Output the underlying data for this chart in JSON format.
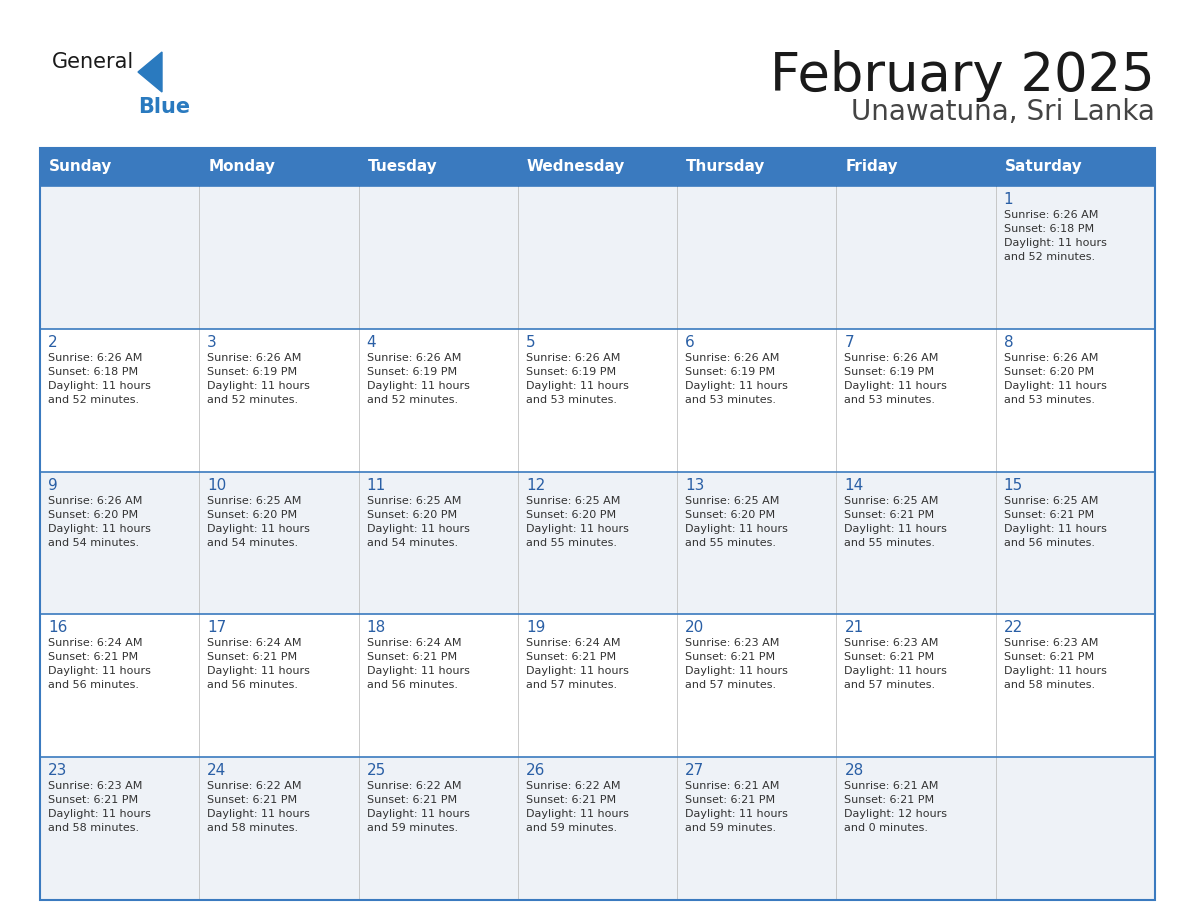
{
  "title": "February 2025",
  "subtitle": "Unawatuna, Sri Lanka",
  "header_color": "#3a7abf",
  "header_text_color": "#ffffff",
  "row_bg_even": "#eef2f7",
  "row_bg_odd": "#ffffff",
  "border_color": "#3a7abf",
  "cell_divider_color": "#c0c0c0",
  "days_of_week": [
    "Sunday",
    "Monday",
    "Tuesday",
    "Wednesday",
    "Thursday",
    "Friday",
    "Saturday"
  ],
  "title_color": "#1a1a1a",
  "subtitle_color": "#444444",
  "day_num_color": "#2a5fa5",
  "text_color": "#333333",
  "logo_general_color": "#1a1a1a",
  "logo_blue_color": "#2a7abf",
  "logo_triangle_color": "#2a7abf",
  "calendar_data": [
    [
      null,
      null,
      null,
      null,
      null,
      null,
      {
        "day": 1,
        "sunrise": "6:26 AM",
        "sunset": "6:18 PM",
        "daylight": "11 hours",
        "daylight2": "and 52 minutes."
      }
    ],
    [
      {
        "day": 2,
        "sunrise": "6:26 AM",
        "sunset": "6:18 PM",
        "daylight": "11 hours",
        "daylight2": "and 52 minutes."
      },
      {
        "day": 3,
        "sunrise": "6:26 AM",
        "sunset": "6:19 PM",
        "daylight": "11 hours",
        "daylight2": "and 52 minutes."
      },
      {
        "day": 4,
        "sunrise": "6:26 AM",
        "sunset": "6:19 PM",
        "daylight": "11 hours",
        "daylight2": "and 52 minutes."
      },
      {
        "day": 5,
        "sunrise": "6:26 AM",
        "sunset": "6:19 PM",
        "daylight": "11 hours",
        "daylight2": "and 53 minutes."
      },
      {
        "day": 6,
        "sunrise": "6:26 AM",
        "sunset": "6:19 PM",
        "daylight": "11 hours",
        "daylight2": "and 53 minutes."
      },
      {
        "day": 7,
        "sunrise": "6:26 AM",
        "sunset": "6:19 PM",
        "daylight": "11 hours",
        "daylight2": "and 53 minutes."
      },
      {
        "day": 8,
        "sunrise": "6:26 AM",
        "sunset": "6:20 PM",
        "daylight": "11 hours",
        "daylight2": "and 53 minutes."
      }
    ],
    [
      {
        "day": 9,
        "sunrise": "6:26 AM",
        "sunset": "6:20 PM",
        "daylight": "11 hours",
        "daylight2": "and 54 minutes."
      },
      {
        "day": 10,
        "sunrise": "6:25 AM",
        "sunset": "6:20 PM",
        "daylight": "11 hours",
        "daylight2": "and 54 minutes."
      },
      {
        "day": 11,
        "sunrise": "6:25 AM",
        "sunset": "6:20 PM",
        "daylight": "11 hours",
        "daylight2": "and 54 minutes."
      },
      {
        "day": 12,
        "sunrise": "6:25 AM",
        "sunset": "6:20 PM",
        "daylight": "11 hours",
        "daylight2": "and 55 minutes."
      },
      {
        "day": 13,
        "sunrise": "6:25 AM",
        "sunset": "6:20 PM",
        "daylight": "11 hours",
        "daylight2": "and 55 minutes."
      },
      {
        "day": 14,
        "sunrise": "6:25 AM",
        "sunset": "6:21 PM",
        "daylight": "11 hours",
        "daylight2": "and 55 minutes."
      },
      {
        "day": 15,
        "sunrise": "6:25 AM",
        "sunset": "6:21 PM",
        "daylight": "11 hours",
        "daylight2": "and 56 minutes."
      }
    ],
    [
      {
        "day": 16,
        "sunrise": "6:24 AM",
        "sunset": "6:21 PM",
        "daylight": "11 hours",
        "daylight2": "and 56 minutes."
      },
      {
        "day": 17,
        "sunrise": "6:24 AM",
        "sunset": "6:21 PM",
        "daylight": "11 hours",
        "daylight2": "and 56 minutes."
      },
      {
        "day": 18,
        "sunrise": "6:24 AM",
        "sunset": "6:21 PM",
        "daylight": "11 hours",
        "daylight2": "and 56 minutes."
      },
      {
        "day": 19,
        "sunrise": "6:24 AM",
        "sunset": "6:21 PM",
        "daylight": "11 hours",
        "daylight2": "and 57 minutes."
      },
      {
        "day": 20,
        "sunrise": "6:23 AM",
        "sunset": "6:21 PM",
        "daylight": "11 hours",
        "daylight2": "and 57 minutes."
      },
      {
        "day": 21,
        "sunrise": "6:23 AM",
        "sunset": "6:21 PM",
        "daylight": "11 hours",
        "daylight2": "and 57 minutes."
      },
      {
        "day": 22,
        "sunrise": "6:23 AM",
        "sunset": "6:21 PM",
        "daylight": "11 hours",
        "daylight2": "and 58 minutes."
      }
    ],
    [
      {
        "day": 23,
        "sunrise": "6:23 AM",
        "sunset": "6:21 PM",
        "daylight": "11 hours",
        "daylight2": "and 58 minutes."
      },
      {
        "day": 24,
        "sunrise": "6:22 AM",
        "sunset": "6:21 PM",
        "daylight": "11 hours",
        "daylight2": "and 58 minutes."
      },
      {
        "day": 25,
        "sunrise": "6:22 AM",
        "sunset": "6:21 PM",
        "daylight": "11 hours",
        "daylight2": "and 59 minutes."
      },
      {
        "day": 26,
        "sunrise": "6:22 AM",
        "sunset": "6:21 PM",
        "daylight": "11 hours",
        "daylight2": "and 59 minutes."
      },
      {
        "day": 27,
        "sunrise": "6:21 AM",
        "sunset": "6:21 PM",
        "daylight": "11 hours",
        "daylight2": "and 59 minutes."
      },
      {
        "day": 28,
        "sunrise": "6:21 AM",
        "sunset": "6:21 PM",
        "daylight": "12 hours",
        "daylight2": "and 0 minutes."
      },
      null
    ]
  ]
}
